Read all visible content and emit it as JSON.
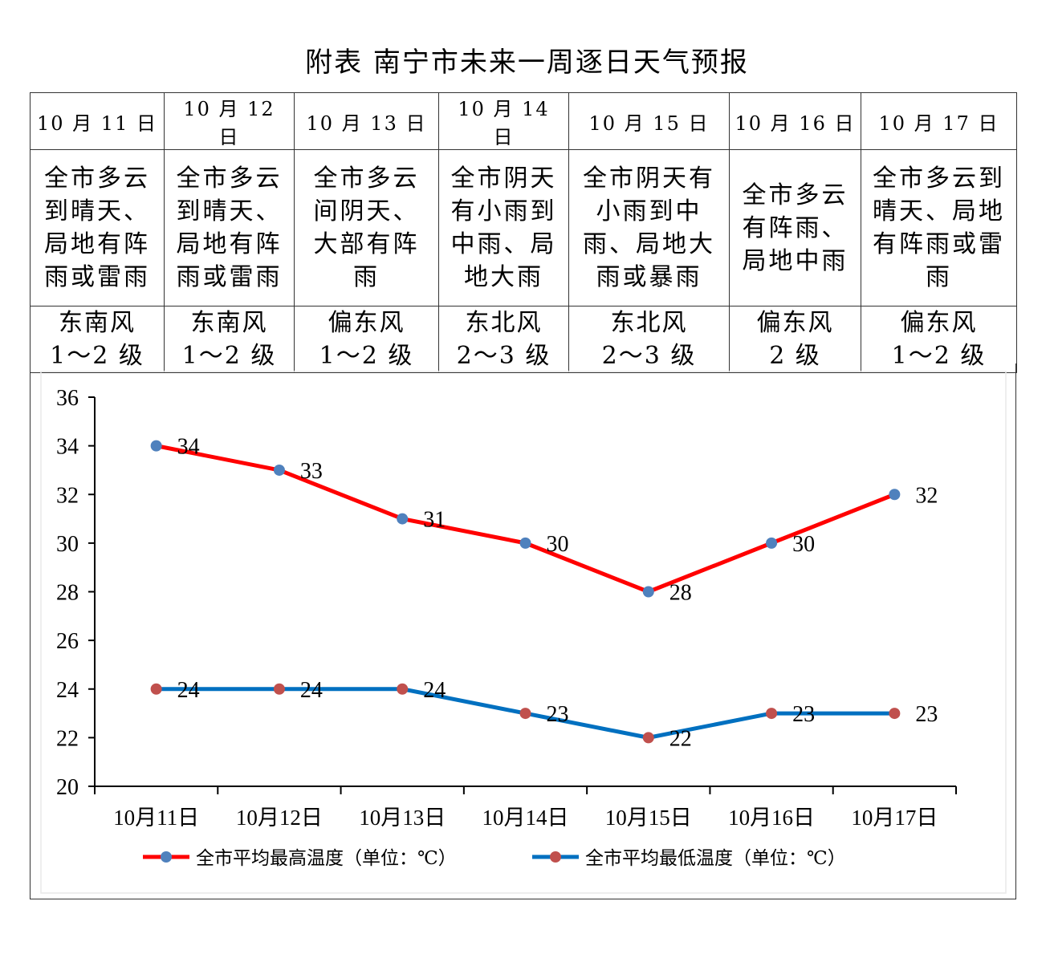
{
  "title": "附表  南宁市未来一周逐日天气预报",
  "days": [
    {
      "date": "10 月 11 日",
      "desc": "全市多云到晴天、局地有阵雨或雷雨",
      "wind": [
        "东南风",
        "1～2 级"
      ]
    },
    {
      "date": "10 月 12 日",
      "desc": "全市多云到晴天、局地有阵雨或雷雨",
      "wind": [
        "东南风",
        "1～2 级"
      ]
    },
    {
      "date": "10 月 13 日",
      "desc": "全市多云间阴天、大部有阵雨",
      "wind": [
        "偏东风",
        "1～2 级"
      ]
    },
    {
      "date": "10 月 14 日",
      "desc": "全市阴天有小雨到中雨、局地大雨",
      "wind": [
        "东北风",
        "2～3 级"
      ]
    },
    {
      "date": "10 月 15 日",
      "desc": "全市阴天有小雨到中雨、局地大雨或暴雨",
      "wind": [
        "东北风",
        "2～3 级"
      ]
    },
    {
      "date": "10 月 16 日",
      "desc": "全市多云有阵雨、局地中雨",
      "wind": [
        "偏东风",
        "2 级"
      ]
    },
    {
      "date": "10 月 17 日",
      "desc": "全市多云到晴天、局地有阵雨或雷雨",
      "wind": [
        "偏东风",
        "1～2 级"
      ]
    }
  ],
  "chart_data": {
    "type": "line",
    "categories": [
      "10月11日",
      "10月12日",
      "10月13日",
      "10月14日",
      "10月15日",
      "10月16日",
      "10月17日"
    ],
    "series": [
      {
        "name": "全市平均最高温度（单位：℃）",
        "values": [
          34,
          33,
          31,
          30,
          28,
          30,
          32
        ],
        "line_color": "#FF0000",
        "marker_color": "#4F81BD"
      },
      {
        "name": "全市平均最低温度（单位：℃）",
        "values": [
          24,
          24,
          24,
          23,
          22,
          23,
          23
        ],
        "line_color": "#0070C0",
        "marker_color": "#C0504D"
      }
    ],
    "ylim": [
      20,
      36
    ],
    "yticks": [
      20,
      22,
      24,
      26,
      28,
      30,
      32,
      34,
      36
    ],
    "legend": "bottom",
    "grid": false
  }
}
